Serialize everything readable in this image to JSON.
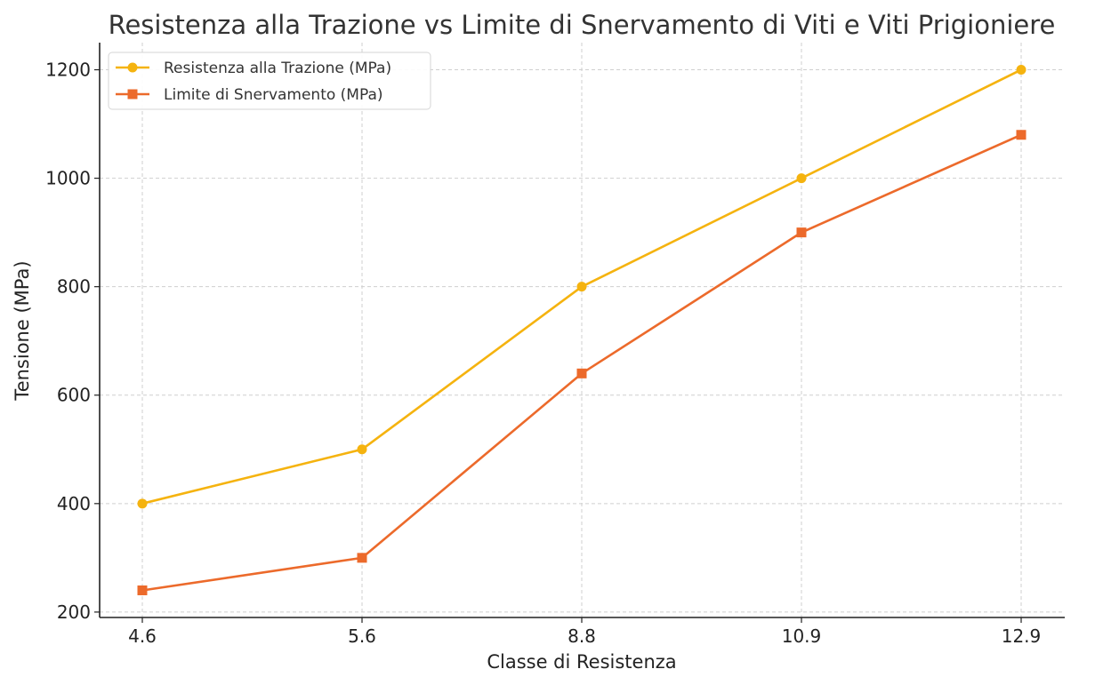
{
  "chart_data": {
    "type": "line",
    "title": "Resistenza alla Trazione vs Limite di Snervamento di Viti e Viti Prigioniere",
    "xlabel": "Classe di Resistenza",
    "ylabel": "Tensione (MPa)",
    "categories": [
      "4.6",
      "5.6",
      "8.8",
      "10.9",
      "12.9"
    ],
    "ylim": [
      190,
      1250
    ],
    "yticks": [
      200,
      400,
      600,
      800,
      1000,
      1200
    ],
    "grid": true,
    "legend_position": "top-left",
    "series": [
      {
        "name": "Resistenza alla Trazione (MPa)",
        "values": [
          400,
          500,
          800,
          1000,
          1200
        ],
        "color": "#f5b30f",
        "marker": "circle"
      },
      {
        "name": "Limite di Snervamento (MPa)",
        "values": [
          240,
          300,
          640,
          900,
          1080
        ],
        "color": "#ec6a2b",
        "marker": "square"
      }
    ]
  }
}
